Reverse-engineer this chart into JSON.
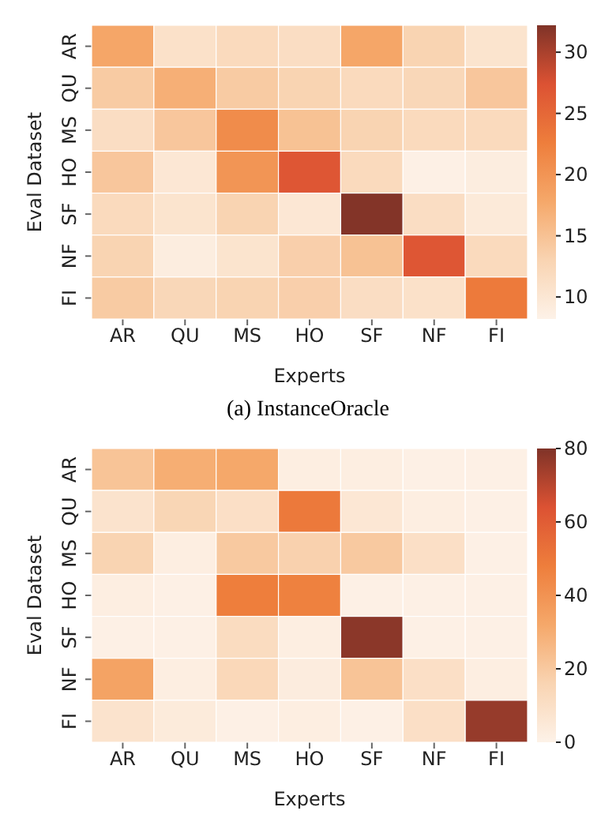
{
  "chart_data": [
    {
      "type": "heatmap",
      "xlabel": "Experts",
      "ylabel": "Eval Dataset",
      "annotations": [
        "(a) InstanceOracle"
      ],
      "categories": [
        "AR",
        "QU",
        "MS",
        "HO",
        "SF",
        "NF",
        "FI"
      ],
      "y_categories": [
        "AR",
        "QU",
        "MS",
        "HO",
        "SF",
        "NF",
        "FI"
      ],
      "cells": [
        [
          18,
          11,
          12,
          11.5,
          18,
          13,
          10.5
        ],
        [
          14,
          17,
          14,
          13,
          12,
          12.5,
          14.5
        ],
        [
          11.5,
          14.5,
          21,
          15,
          13,
          12,
          12
        ],
        [
          14.5,
          10,
          20,
          27,
          12,
          8.5,
          9
        ],
        [
          12,
          10.5,
          13,
          10,
          32,
          11.5,
          9.5
        ],
        [
          13,
          9,
          10.5,
          13.5,
          15,
          27,
          12
        ],
        [
          14,
          12.5,
          13,
          13.5,
          11.5,
          11,
          23
        ]
      ],
      "clim": [
        8.2,
        32.2
      ],
      "cticks": [
        10,
        15,
        20,
        25,
        30
      ]
    },
    {
      "type": "heatmap",
      "xlabel": "Experts",
      "ylabel": "Eval Dataset",
      "categories": [
        "AR",
        "QU",
        "MS",
        "HO",
        "SF",
        "NF",
        "FI"
      ],
      "y_categories": [
        "AR",
        "QU",
        "MS",
        "HO",
        "SF",
        "NF",
        "FI"
      ],
      "cells": [
        [
          22,
          30,
          32,
          2,
          2,
          1,
          1
        ],
        [
          8,
          15,
          10,
          50,
          6,
          2,
          1
        ],
        [
          16,
          2,
          20,
          17,
          20,
          10,
          1
        ],
        [
          2,
          1,
          48,
          47,
          1,
          1,
          1
        ],
        [
          1,
          1,
          12,
          2,
          78,
          1,
          1
        ],
        [
          34,
          2,
          14,
          3,
          22,
          10,
          2
        ],
        [
          8,
          4,
          1,
          2,
          1,
          10,
          76
        ]
      ],
      "clim": [
        0,
        80
      ],
      "cticks": [
        0,
        20,
        40,
        60,
        80
      ]
    }
  ]
}
